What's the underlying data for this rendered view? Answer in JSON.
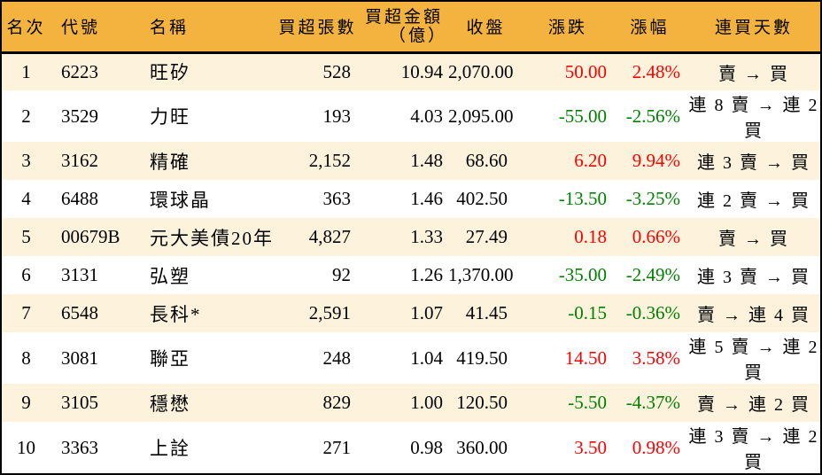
{
  "colors": {
    "header_bg": "#F3B33E",
    "row_odd_bg": "#FDF3DC",
    "row_even_bg": "#FFFFFF",
    "border": "#000000",
    "up": "#FF0000",
    "down": "#008000",
    "text": "#000000"
  },
  "chart_data": {
    "type": "table",
    "columns": [
      {
        "key": "rank",
        "label": "名次",
        "align": "center"
      },
      {
        "key": "code",
        "label": "代號",
        "align": "left"
      },
      {
        "key": "name",
        "label": "名稱",
        "align": "left"
      },
      {
        "key": "volume",
        "label": "買超張數",
        "align": "right"
      },
      {
        "key": "amount",
        "label": "買超金額",
        "label2": "（億）",
        "align": "right"
      },
      {
        "key": "close",
        "label": "收盤",
        "align": "right"
      },
      {
        "key": "change",
        "label": "漲跌",
        "align": "right",
        "colored": true
      },
      {
        "key": "change_pct",
        "label": "漲幅",
        "align": "right",
        "colored": true
      },
      {
        "key": "streak",
        "label": "連買天數",
        "align": "center"
      }
    ],
    "rows": [
      {
        "rank": "1",
        "code": "6223",
        "name": "旺矽",
        "volume": "528",
        "amount": "10.94",
        "close": "2,070.00",
        "change": "50.00",
        "change_pct": "2.48%",
        "trend": "up",
        "streak": "賣 → 買"
      },
      {
        "rank": "2",
        "code": "3529",
        "name": "力旺",
        "volume": "193",
        "amount": "4.03",
        "close": "2,095.00",
        "change": "-55.00",
        "change_pct": "-2.56%",
        "trend": "down",
        "streak": "連 8 賣 → 連 2 買"
      },
      {
        "rank": "3",
        "code": "3162",
        "name": "精確",
        "volume": "2,152",
        "amount": "1.48",
        "close": "68.60",
        "change": "6.20",
        "change_pct": "9.94%",
        "trend": "up",
        "streak": "連 3 賣 → 買"
      },
      {
        "rank": "4",
        "code": "6488",
        "name": "環球晶",
        "volume": "363",
        "amount": "1.46",
        "close": "402.50",
        "change": "-13.50",
        "change_pct": "-3.25%",
        "trend": "down",
        "streak": "連 2 賣 → 買"
      },
      {
        "rank": "5",
        "code": "00679B",
        "name": "元大美債20年",
        "volume": "4,827",
        "amount": "1.33",
        "close": "27.49",
        "change": "0.18",
        "change_pct": "0.66%",
        "trend": "up",
        "streak": "賣 → 買"
      },
      {
        "rank": "6",
        "code": "3131",
        "name": "弘塑",
        "volume": "92",
        "amount": "1.26",
        "close": "1,370.00",
        "change": "-35.00",
        "change_pct": "-2.49%",
        "trend": "down",
        "streak": "連 3 賣 → 買"
      },
      {
        "rank": "7",
        "code": "6548",
        "name": "長科*",
        "volume": "2,591",
        "amount": "1.07",
        "close": "41.45",
        "change": "-0.15",
        "change_pct": "-0.36%",
        "trend": "down",
        "streak": "賣 → 連 4 買"
      },
      {
        "rank": "8",
        "code": "3081",
        "name": "聯亞",
        "volume": "248",
        "amount": "1.04",
        "close": "419.50",
        "change": "14.50",
        "change_pct": "3.58%",
        "trend": "up",
        "streak": "連 5 賣 → 連 2 買"
      },
      {
        "rank": "9",
        "code": "3105",
        "name": "穩懋",
        "volume": "829",
        "amount": "1.00",
        "close": "120.50",
        "change": "-5.50",
        "change_pct": "-4.37%",
        "trend": "down",
        "streak": "賣 → 連 2 買"
      },
      {
        "rank": "10",
        "code": "3363",
        "name": "上詮",
        "volume": "271",
        "amount": "0.98",
        "close": "360.00",
        "change": "3.50",
        "change_pct": "0.98%",
        "trend": "up",
        "streak": "連 3 賣 → 連 2 買"
      }
    ]
  }
}
